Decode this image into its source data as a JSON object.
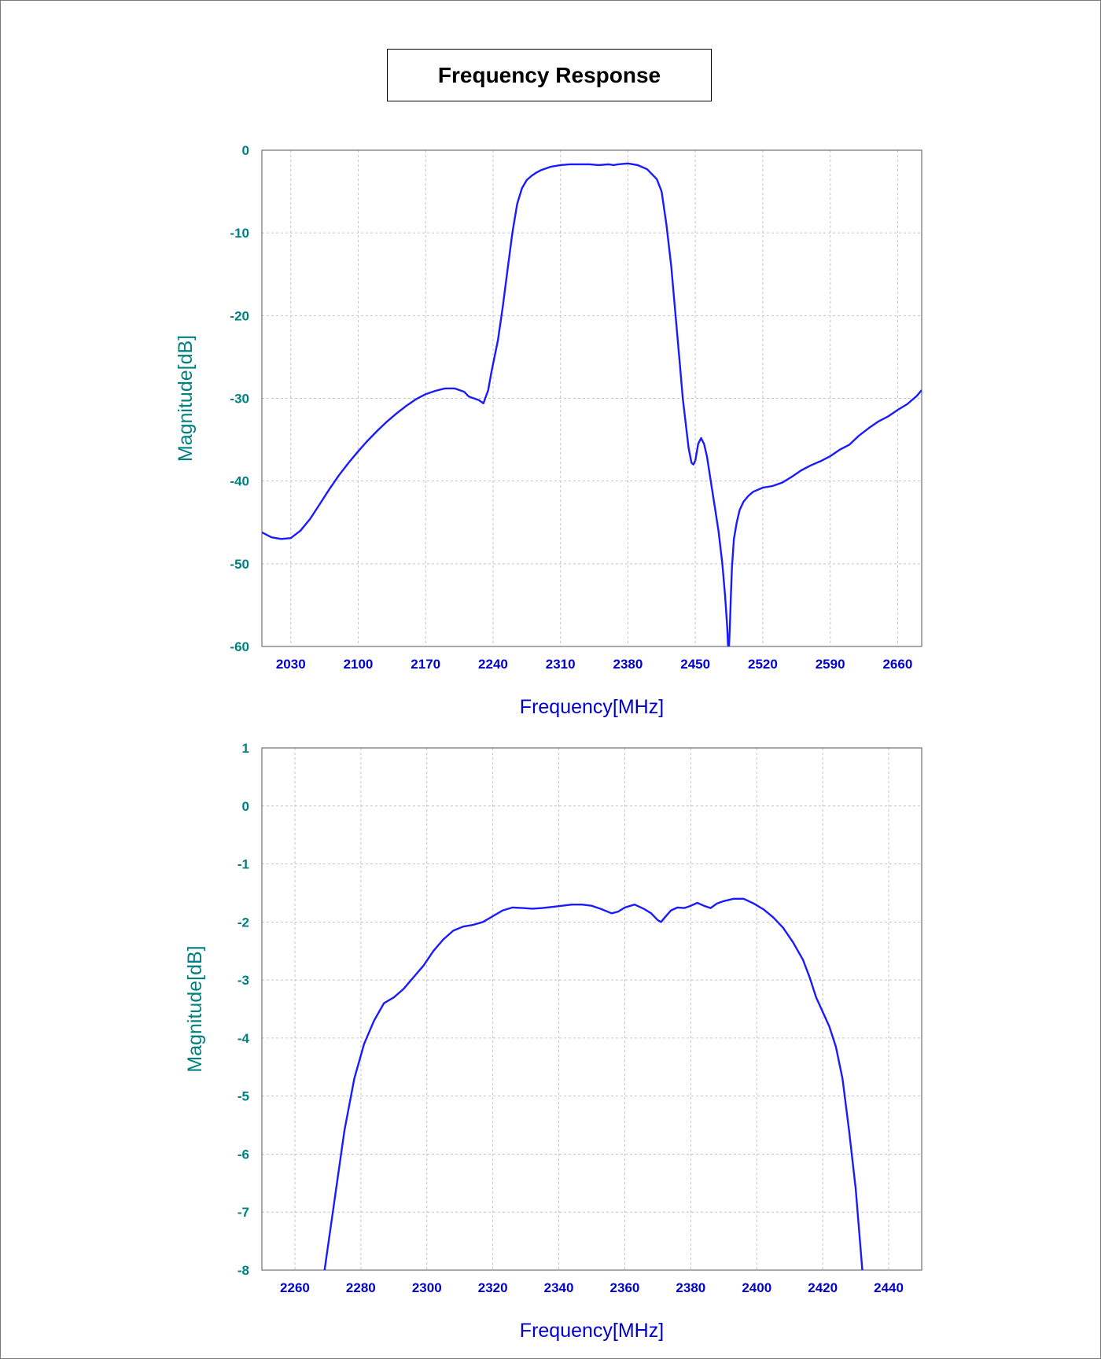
{
  "title": "Frequency Response",
  "colors": {
    "line": "#1a1aff",
    "ytick": "#008080",
    "xtick": "#0000cc",
    "ylabel": "#008080",
    "xlabel": "#0000cc",
    "grid": "#c4c4c4"
  },
  "chart_data": [
    {
      "type": "line",
      "xlabel": "Frequency[MHz]",
      "ylabel": "Magnitude[dB]",
      "xlim": [
        2000,
        2685
      ],
      "ylim": [
        -60,
        0
      ],
      "xticks": [
        2030,
        2100,
        2170,
        2240,
        2310,
        2380,
        2450,
        2520,
        2590,
        2660
      ],
      "yticks": [
        0,
        -10,
        -20,
        -30,
        -40,
        -50,
        -60
      ],
      "grid": true,
      "series": [
        {
          "x": [
            2000,
            2010,
            2020,
            2030,
            2040,
            2050,
            2060,
            2070,
            2080,
            2090,
            2100,
            2110,
            2120,
            2130,
            2140,
            2150,
            2160,
            2170,
            2180,
            2190,
            2200,
            2210,
            2215,
            2220,
            2225,
            2230,
            2235,
            2238,
            2245,
            2250,
            2255,
            2260,
            2265,
            2270,
            2275,
            2280,
            2285,
            2290,
            2300,
            2310,
            2320,
            2330,
            2340,
            2350,
            2360,
            2365,
            2370,
            2380,
            2390,
            2400,
            2410,
            2415,
            2420,
            2425,
            2428,
            2431,
            2434,
            2437,
            2440,
            2443,
            2446,
            2448,
            2450,
            2453,
            2456,
            2459,
            2462,
            2466,
            2470,
            2474,
            2478,
            2481,
            2483,
            2484,
            2485,
            2486,
            2487,
            2488,
            2490,
            2493,
            2496,
            2500,
            2505,
            2510,
            2520,
            2530,
            2540,
            2550,
            2560,
            2570,
            2580,
            2590,
            2600,
            2610,
            2620,
            2630,
            2640,
            2650,
            2660,
            2670,
            2680,
            2685
          ],
          "y": [
            -46.2,
            -46.8,
            -47.0,
            -46.9,
            -46.0,
            -44.6,
            -42.8,
            -41.0,
            -39.3,
            -37.8,
            -36.4,
            -35.1,
            -33.9,
            -32.8,
            -31.8,
            -30.9,
            -30.1,
            -29.5,
            -29.1,
            -28.8,
            -28.8,
            -29.2,
            -29.8,
            -30.0,
            -30.2,
            -30.6,
            -29.0,
            -27.0,
            -23.0,
            -19.0,
            -14.5,
            -10.0,
            -6.5,
            -4.6,
            -3.6,
            -3.1,
            -2.7,
            -2.4,
            -2.0,
            -1.8,
            -1.7,
            -1.7,
            -1.7,
            -1.8,
            -1.7,
            -1.8,
            -1.7,
            -1.6,
            -1.8,
            -2.3,
            -3.5,
            -5.0,
            -9.0,
            -14.0,
            -18.0,
            -22.0,
            -26.0,
            -30.0,
            -33.0,
            -36.0,
            -37.8,
            -38.0,
            -37.5,
            -35.5,
            -34.8,
            -35.5,
            -37.0,
            -40.0,
            -43.0,
            -46.0,
            -50.0,
            -54.0,
            -57.5,
            -60.0,
            -60.0,
            -57.0,
            -53.5,
            -50.5,
            -47.0,
            -45.0,
            -43.5,
            -42.5,
            -41.8,
            -41.3,
            -40.8,
            -40.6,
            -40.2,
            -39.5,
            -38.7,
            -38.1,
            -37.6,
            -37.0,
            -36.2,
            -35.6,
            -34.5,
            -33.6,
            -32.8,
            -32.2,
            -31.4,
            -30.7,
            -29.7,
            -29.0
          ]
        }
      ]
    },
    {
      "type": "line",
      "xlabel": "Frequency[MHz]",
      "ylabel": "Magnitude[dB]",
      "xlim": [
        2250,
        2450
      ],
      "ylim": [
        -8,
        1
      ],
      "xticks": [
        2260,
        2280,
        2300,
        2320,
        2340,
        2360,
        2380,
        2400,
        2420,
        2440
      ],
      "yticks": [
        1,
        0,
        -1,
        -2,
        -3,
        -4,
        -5,
        -6,
        -7,
        -8
      ],
      "grid": true,
      "series": [
        {
          "x": [
            2269,
            2272,
            2275,
            2278,
            2281,
            2284,
            2287,
            2290,
            2293,
            2296,
            2299,
            2302,
            2305,
            2308,
            2311,
            2314,
            2317,
            2320,
            2323,
            2326,
            2329,
            2332,
            2335,
            2338,
            2341,
            2344,
            2347,
            2350,
            2353,
            2356,
            2358,
            2360,
            2363,
            2366,
            2368,
            2370,
            2371,
            2372,
            2374,
            2376,
            2378,
            2380,
            2382,
            2384,
            2386,
            2388,
            2390,
            2393,
            2396,
            2399,
            2402,
            2405,
            2408,
            2411,
            2414,
            2416,
            2418,
            2420,
            2422,
            2424,
            2426,
            2428,
            2430,
            2432
          ],
          "y": [
            -8.0,
            -6.8,
            -5.6,
            -4.7,
            -4.1,
            -3.7,
            -3.4,
            -3.3,
            -3.15,
            -2.95,
            -2.75,
            -2.5,
            -2.3,
            -2.15,
            -2.08,
            -2.05,
            -2.0,
            -1.9,
            -1.8,
            -1.75,
            -1.76,
            -1.77,
            -1.76,
            -1.74,
            -1.72,
            -1.7,
            -1.7,
            -1.72,
            -1.78,
            -1.85,
            -1.82,
            -1.75,
            -1.7,
            -1.78,
            -1.85,
            -1.97,
            -2.0,
            -1.93,
            -1.8,
            -1.75,
            -1.76,
            -1.72,
            -1.67,
            -1.72,
            -1.76,
            -1.68,
            -1.64,
            -1.6,
            -1.6,
            -1.68,
            -1.78,
            -1.92,
            -2.1,
            -2.35,
            -2.65,
            -2.95,
            -3.3,
            -3.55,
            -3.8,
            -4.15,
            -4.7,
            -5.6,
            -6.6,
            -8.0
          ]
        }
      ]
    }
  ]
}
